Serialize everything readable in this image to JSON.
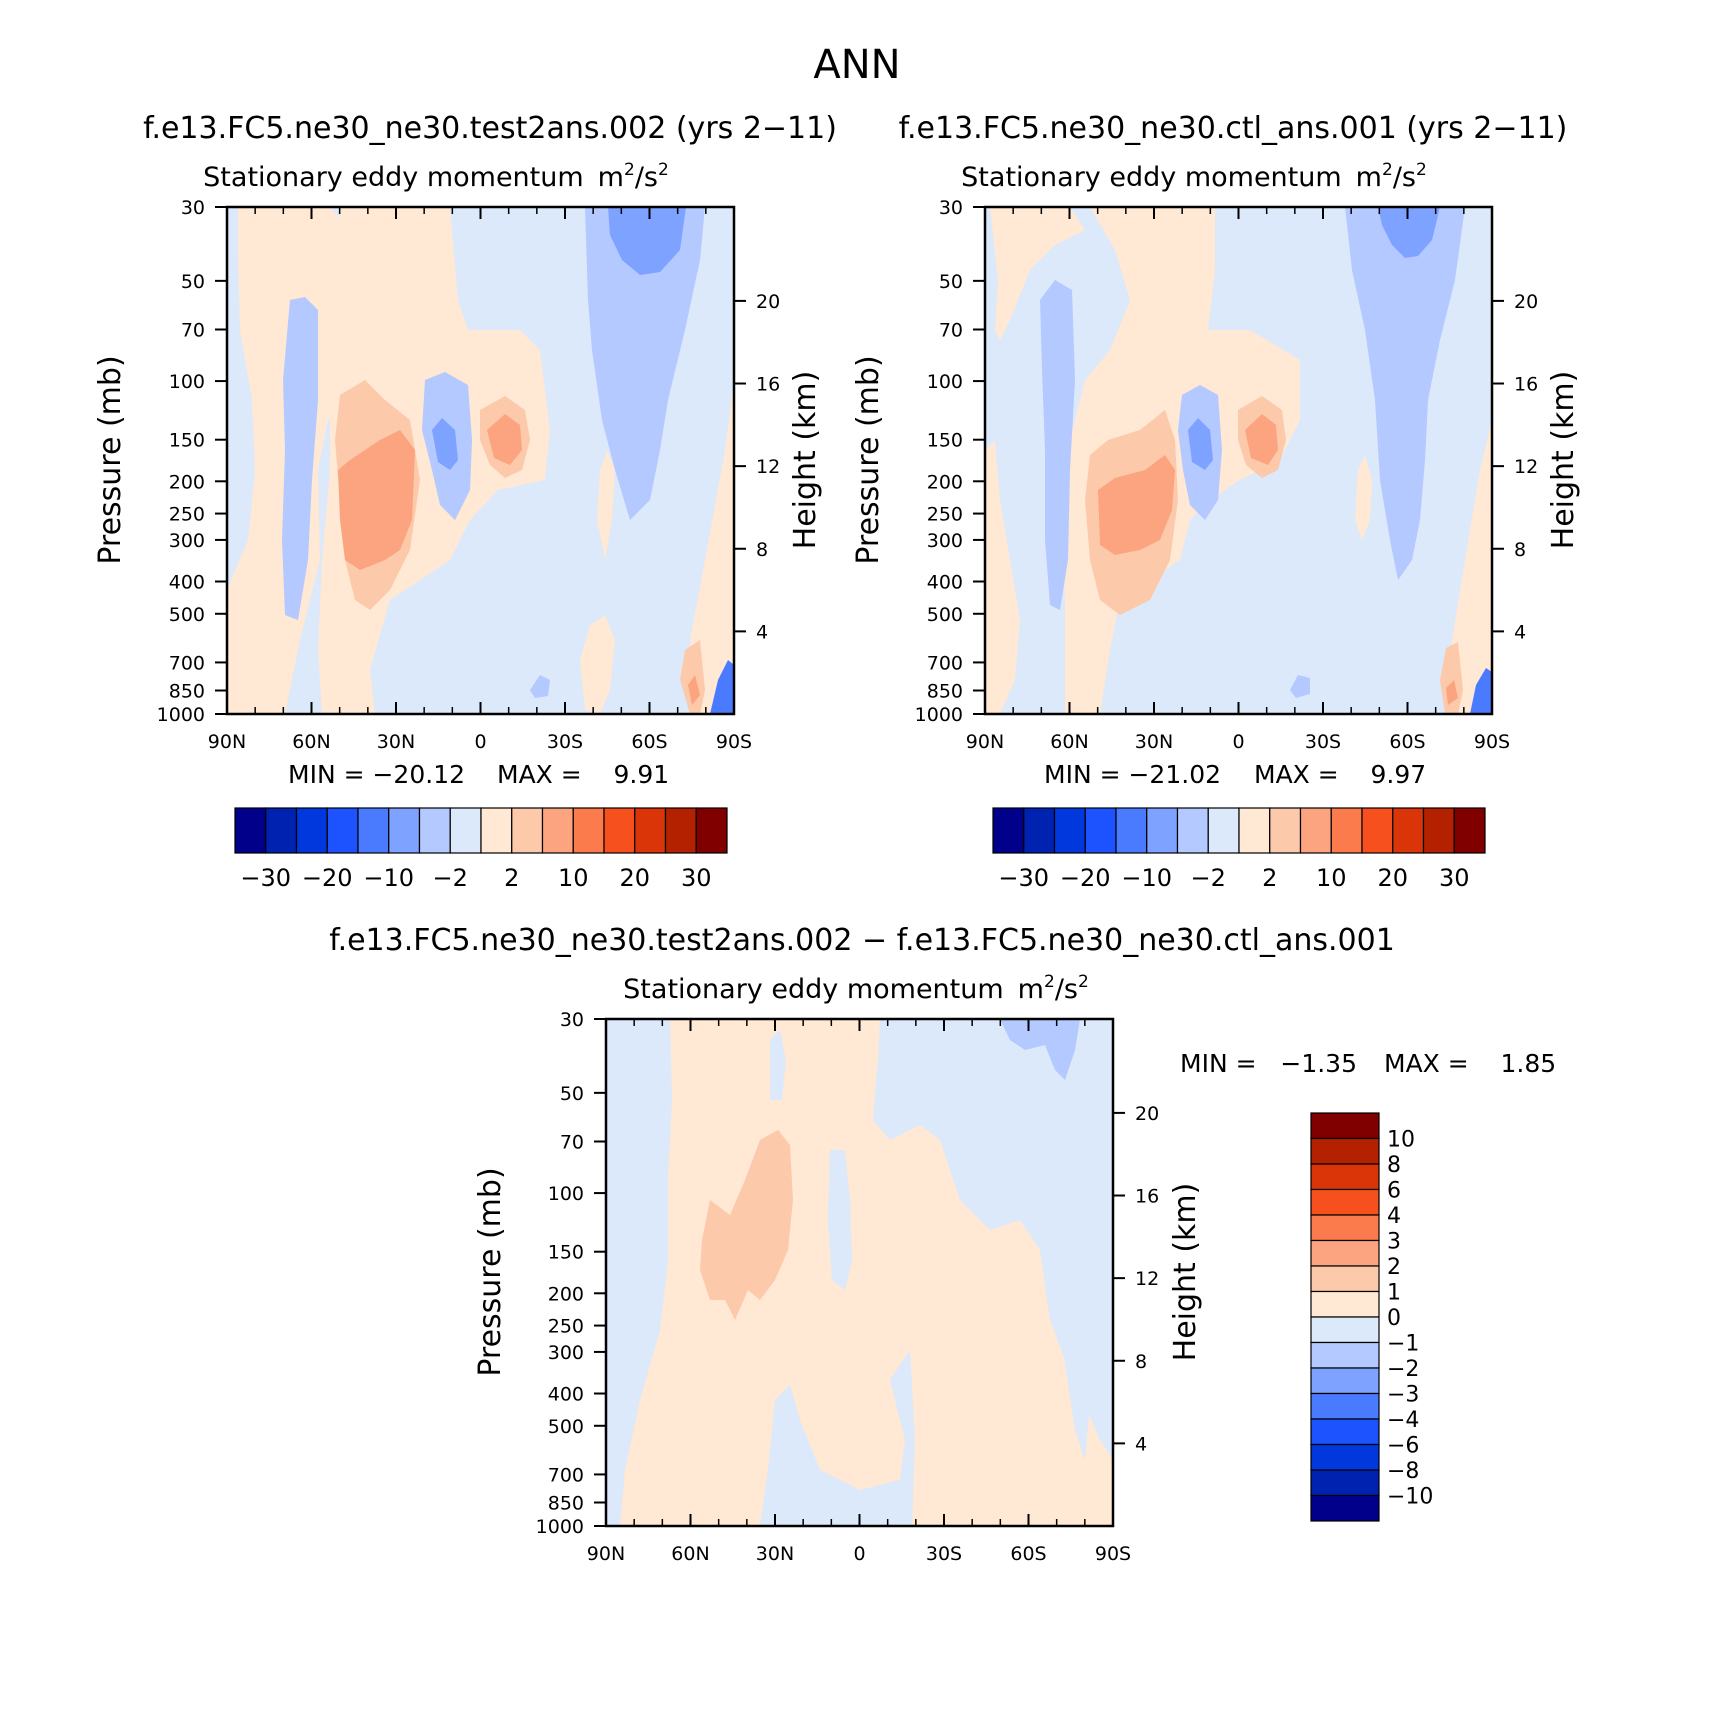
{
  "page_title": "ANN",
  "colors": {
    "main_scale": [
      "#00008a",
      "#0022b0",
      "#0038de",
      "#1d53ff",
      "#4a7bff",
      "#7ea2ff",
      "#b3c9ff",
      "#dbe9fb",
      "#ffe8d4",
      "#fdc9ab",
      "#fca47f",
      "#fb7b4c",
      "#f6501f",
      "#d93508",
      "#b32100",
      "#800000"
    ],
    "diff_scale": [
      "#00008a",
      "#0022b0",
      "#0038de",
      "#1d53ff",
      "#4a7bff",
      "#7ea2ff",
      "#b3c9ff",
      "#dbe9fb",
      "#ffe8d4",
      "#fdc9ab",
      "#fca47f",
      "#fb7b4c",
      "#f6501f",
      "#d93508",
      "#b32100",
      "#800000"
    ]
  },
  "chart_data": [
    {
      "id": "test",
      "type": "heatmap",
      "case_title": "f.e13.FC5.ne30_ne30.test2ans.002 (yrs 2−11)",
      "variable": "Stationary eddy momentum",
      "units": "m²/s²",
      "units_base": "m",
      "units_sup1": "2",
      "units_mid": "/s",
      "units_sup2": "2",
      "ylabel": "Pressure (mb)",
      "ylabel_right": "Height (km)",
      "x_ticks": [
        "90N",
        "60N",
        "30N",
        "0",
        "30S",
        "60S",
        "90S"
      ],
      "p_ticks": [
        30,
        50,
        70,
        100,
        150,
        200,
        250,
        300,
        400,
        500,
        700,
        850,
        1000
      ],
      "p_tick_labels": [
        "30",
        "50",
        "70",
        "100",
        "150",
        "200",
        "250",
        "300",
        "400",
        "500",
        "700",
        "850",
        "1000"
      ],
      "height_ticks": [
        20,
        16,
        12,
        8,
        4
      ],
      "height_tick_labels": [
        "20",
        "16",
        "12",
        "8",
        "4"
      ],
      "min_label": "MIN = −20.12",
      "max_label": "MAX =    9.91",
      "min": -20.12,
      "max": 9.91,
      "levels": [
        -30,
        -25,
        -20,
        -15,
        -10,
        -6,
        -2,
        0,
        2,
        6,
        10,
        15,
        20,
        25,
        30
      ],
      "colorbar_labels": [
        "−30",
        "−20",
        "−10",
        "−2",
        "2",
        "10",
        "20",
        "30"
      ]
    },
    {
      "id": "ctl",
      "type": "heatmap",
      "case_title": "f.e13.FC5.ne30_ne30.ctl_ans.001 (yrs 2−11)",
      "variable": "Stationary eddy momentum",
      "units": "m²/s²",
      "units_base": "m",
      "units_sup1": "2",
      "units_mid": "/s",
      "units_sup2": "2",
      "ylabel": "Pressure (mb)",
      "ylabel_right": "Height (km)",
      "x_ticks": [
        "90N",
        "60N",
        "30N",
        "0",
        "30S",
        "60S",
        "90S"
      ],
      "p_ticks": [
        30,
        50,
        70,
        100,
        150,
        200,
        250,
        300,
        400,
        500,
        700,
        850,
        1000
      ],
      "p_tick_labels": [
        "30",
        "50",
        "70",
        "100",
        "150",
        "200",
        "250",
        "300",
        "400",
        "500",
        "700",
        "850",
        "1000"
      ],
      "height_ticks": [
        20,
        16,
        12,
        8,
        4
      ],
      "height_tick_labels": [
        "20",
        "16",
        "12",
        "8",
        "4"
      ],
      "min_label": "MIN = −21.02",
      "max_label": "MAX =    9.97",
      "min": -21.02,
      "max": 9.97,
      "levels": [
        -30,
        -25,
        -20,
        -15,
        -10,
        -6,
        -2,
        0,
        2,
        6,
        10,
        15,
        20,
        25,
        30
      ],
      "colorbar_labels": [
        "−30",
        "−20",
        "−10",
        "−2",
        "2",
        "10",
        "20",
        "30"
      ]
    },
    {
      "id": "diff",
      "type": "heatmap",
      "case_title": "f.e13.FC5.ne30_ne30.test2ans.002 − f.e13.FC5.ne30_ne30.ctl_ans.001",
      "variable": "Stationary eddy momentum",
      "units": "m²/s²",
      "units_base": "m",
      "units_sup1": "2",
      "units_mid": "/s",
      "units_sup2": "2",
      "ylabel": "Pressure (mb)",
      "ylabel_right": "Height (km)",
      "x_ticks": [
        "90N",
        "60N",
        "30N",
        "0",
        "30S",
        "60S",
        "90S"
      ],
      "p_ticks": [
        30,
        50,
        70,
        100,
        150,
        200,
        250,
        300,
        400,
        500,
        700,
        850,
        1000
      ],
      "p_tick_labels": [
        "30",
        "50",
        "70",
        "100",
        "150",
        "200",
        "250",
        "300",
        "400",
        "500",
        "700",
        "850",
        "1000"
      ],
      "height_ticks": [
        20,
        16,
        12,
        8,
        4
      ],
      "height_tick_labels": [
        "20",
        "16",
        "12",
        "8",
        "4"
      ],
      "min_label": "MIN =   −1.35",
      "max_label": "MAX =    1.85",
      "min": -1.35,
      "max": 1.85,
      "levels": [
        -10,
        -8,
        -6,
        -4,
        -3,
        -2,
        -1,
        0,
        1,
        2,
        3,
        4,
        6,
        8,
        10
      ],
      "colorbar_labels": [
        "10",
        "8",
        "6",
        "4",
        "3",
        "2",
        "1",
        "0",
        "−1",
        "−2",
        "−3",
        "−4",
        "−6",
        "−8",
        "−10"
      ]
    }
  ]
}
